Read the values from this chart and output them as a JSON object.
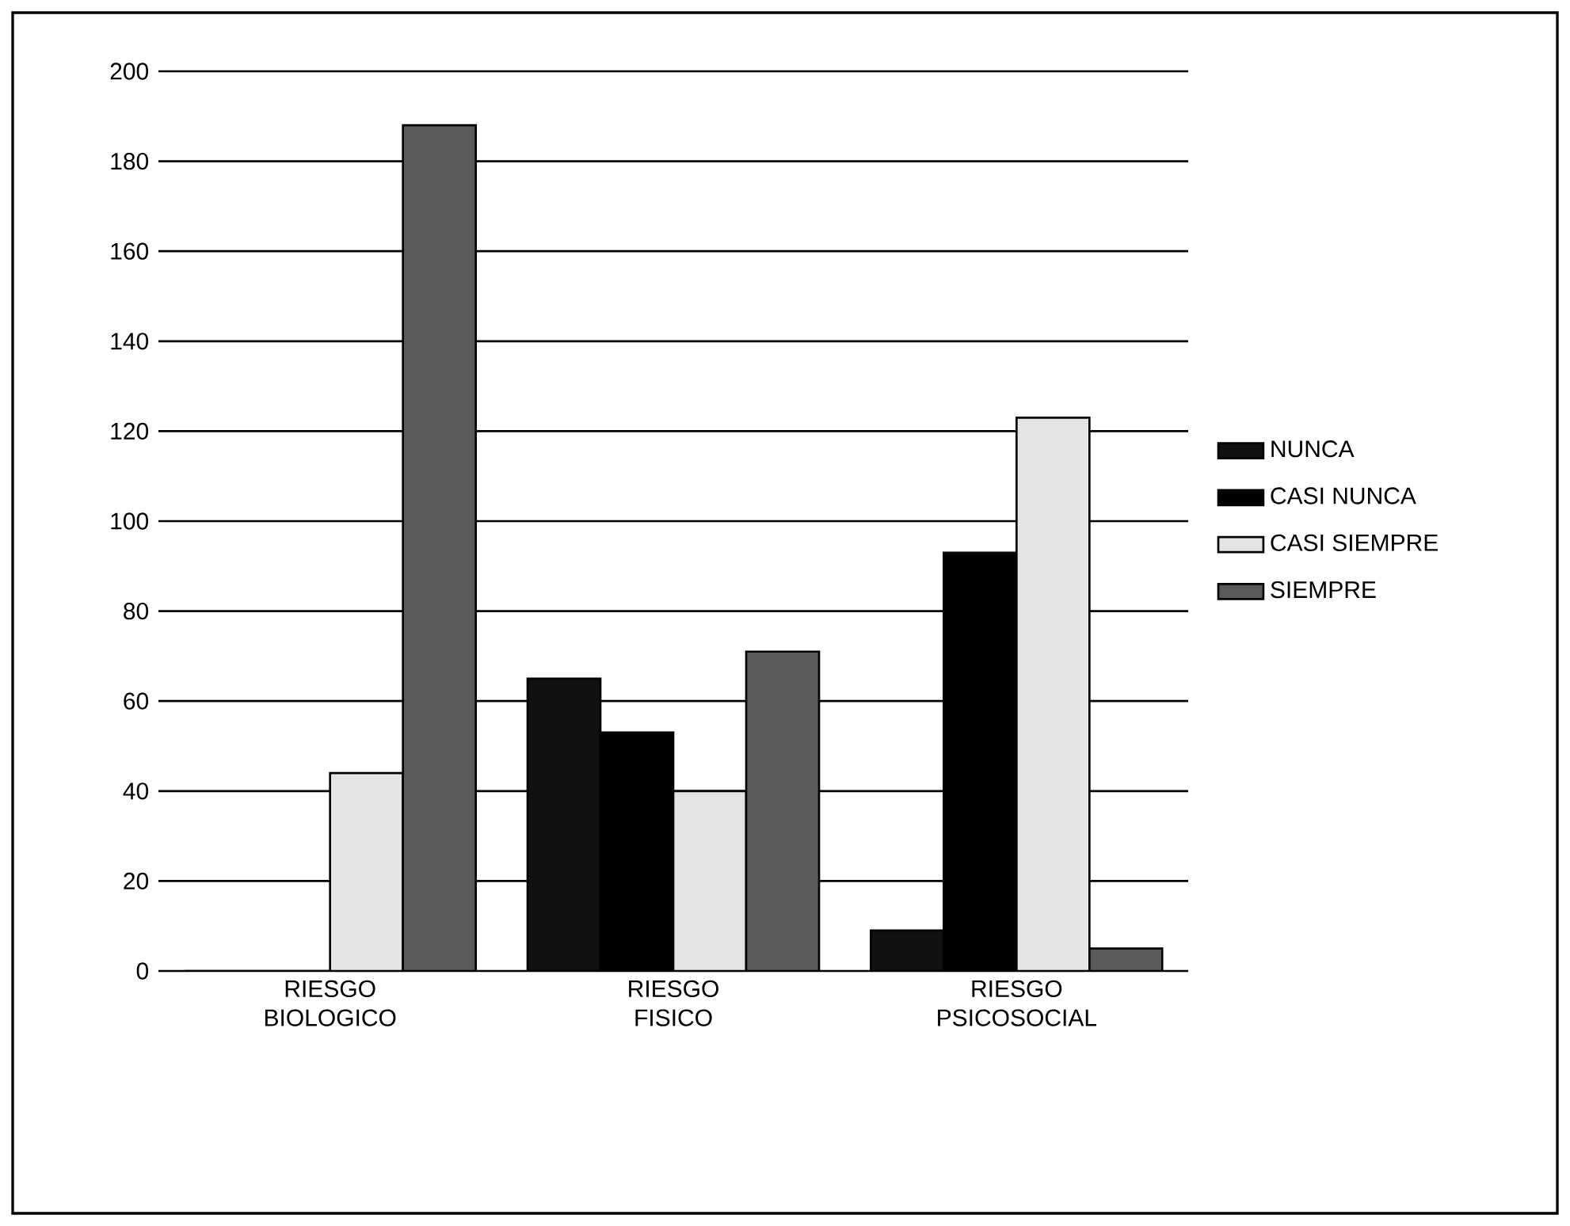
{
  "chart_data": {
    "type": "bar",
    "categories": [
      "RIESGO BIOLOGICO",
      "RIESGO FISICO",
      "RIESGO PSICOSOCIAL"
    ],
    "series": [
      {
        "name": "NUNCA",
        "color": "#111111",
        "values": [
          0,
          65,
          9
        ]
      },
      {
        "name": "CASI NUNCA",
        "color": "#000000",
        "values": [
          0,
          53,
          93
        ]
      },
      {
        "name": "CASI SIEMPRE",
        "color": "#e4e4e4",
        "values": [
          44,
          40,
          123
        ]
      },
      {
        "name": "SIEMPRE",
        "color": "#5a5a5a",
        "values": [
          188,
          71,
          5
        ]
      }
    ],
    "ylim": [
      0,
      200
    ],
    "yticks": [
      0,
      20,
      40,
      60,
      80,
      100,
      120,
      140,
      160,
      180,
      200
    ],
    "grid": "y",
    "legend": "right"
  }
}
